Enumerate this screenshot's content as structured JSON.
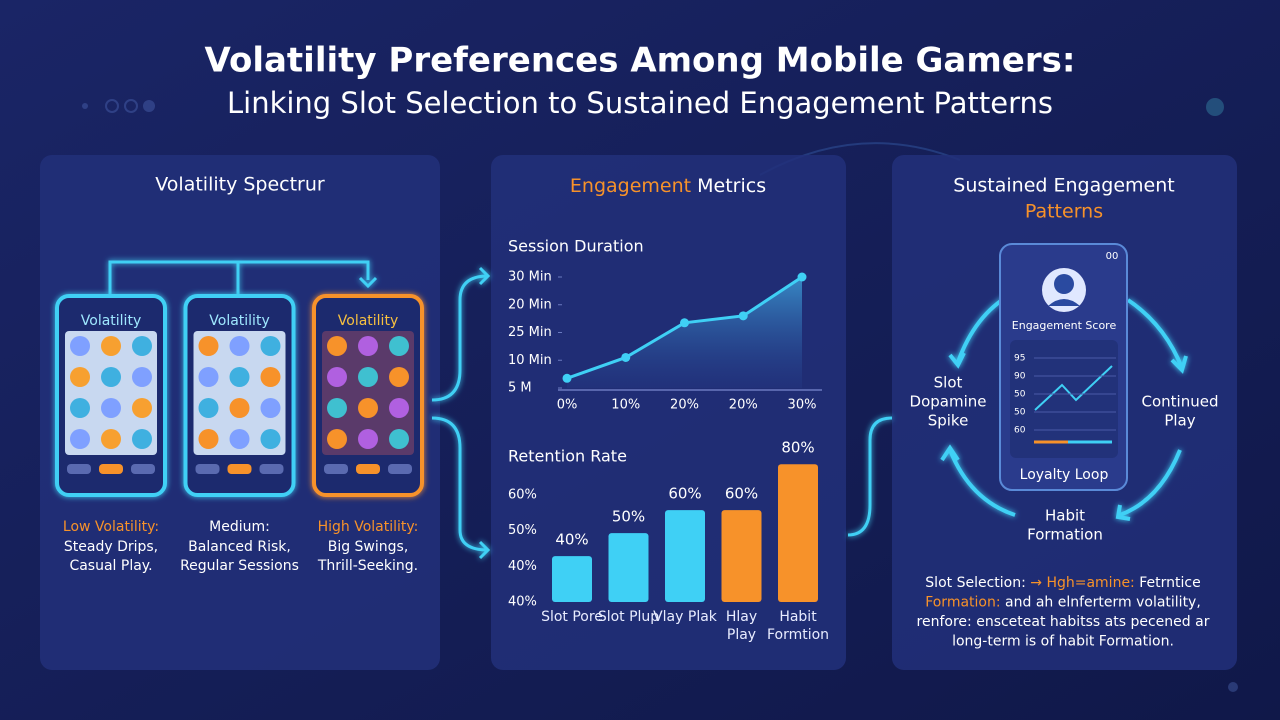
{
  "header": {
    "title": "Volatility Preferences Among Mobile Gamers:",
    "subtitle": "Linking Slot Selection to Sustained Engagement Patterns"
  },
  "spectrum": {
    "title": "Volatility Spectrur",
    "phones": [
      {
        "label": "Volatility",
        "heading": "Low Volatility:",
        "lines": [
          "Steady Drips,",
          "Casual Play."
        ]
      },
      {
        "label": "Volatility",
        "heading": "Medium:",
        "lines": [
          "Balanced Risk,",
          "Regular Sessions"
        ]
      },
      {
        "label": "Volatility",
        "heading": "High Volatility:",
        "lines": [
          "Big Swings,",
          "Thrill-Seeking."
        ]
      }
    ]
  },
  "metrics": {
    "title_highlight": "Engagement",
    "title_rest": " Metrics"
  },
  "chart_data": [
    {
      "type": "line",
      "title": "Session Duration",
      "categories": [
        "0%",
        "10%",
        "20%",
        "20%",
        "30%"
      ],
      "values": [
        0.35,
        1.1,
        2.35,
        2.6,
        4.0
      ],
      "color": "#3fd0f5",
      "ylim": [
        0,
        4
      ],
      "yticks": [
        {
          "value": 0,
          "label": "5 M"
        },
        {
          "value": 1,
          "label": "10 Min"
        },
        {
          "value": 2,
          "label": "25 Min"
        },
        {
          "value": 3,
          "label": "20 Min"
        },
        {
          "value": 4,
          "label": "30 Min"
        }
      ]
    },
    {
      "type": "bar",
      "title": "Retention Rate",
      "categories": [
        "Slot Pore",
        "Slot Plup",
        "Vlay Plak",
        "Hlay Play",
        "Habit Formtion"
      ],
      "values": [
        40,
        50,
        60,
        60,
        80
      ],
      "value_labels": [
        "40%",
        "50%",
        "60%",
        "60%",
        "80%"
      ],
      "colors": [
        "#3fd0f5",
        "#3fd0f5",
        "#3fd0f5",
        "#f7922a",
        "#f7922a"
      ],
      "ylim": [
        20,
        84
      ],
      "y_labels": [
        "60%",
        "50%",
        "40%",
        "40%"
      ]
    }
  ],
  "patterns": {
    "title": "Sustained Engagement",
    "title_highlight": "Patterns",
    "screen_title": "Engagement Score",
    "screen_numbers": [
      95,
      90,
      50,
      50,
      60
    ],
    "status": "00",
    "loop": "Loyalty Loop",
    "left": [
      "Slot",
      "Dopamine",
      "Spike"
    ],
    "right": [
      "Continued",
      "Play"
    ],
    "bottom": [
      "Habit",
      "Formation"
    ],
    "summary": [
      [
        {
          "text": "Slot Selection: ",
          "color": "#ffffff"
        },
        {
          "text": "→ Hgh=amine:",
          "color": "#f7922a"
        },
        {
          "text": " Fetrntice",
          "color": "#ffffff"
        }
      ],
      [
        {
          "text": "Formation:",
          "color": "#f7922a"
        },
        {
          "text": " and ah elnferterm volatility,",
          "color": "#ffffff"
        }
      ],
      [
        {
          "text": "renfore: ensceteat habitss ats pecened ar",
          "color": "#ffffff"
        }
      ],
      [
        {
          "text": "long-term is of habit Formation.",
          "color": "#ffffff"
        }
      ]
    ]
  }
}
